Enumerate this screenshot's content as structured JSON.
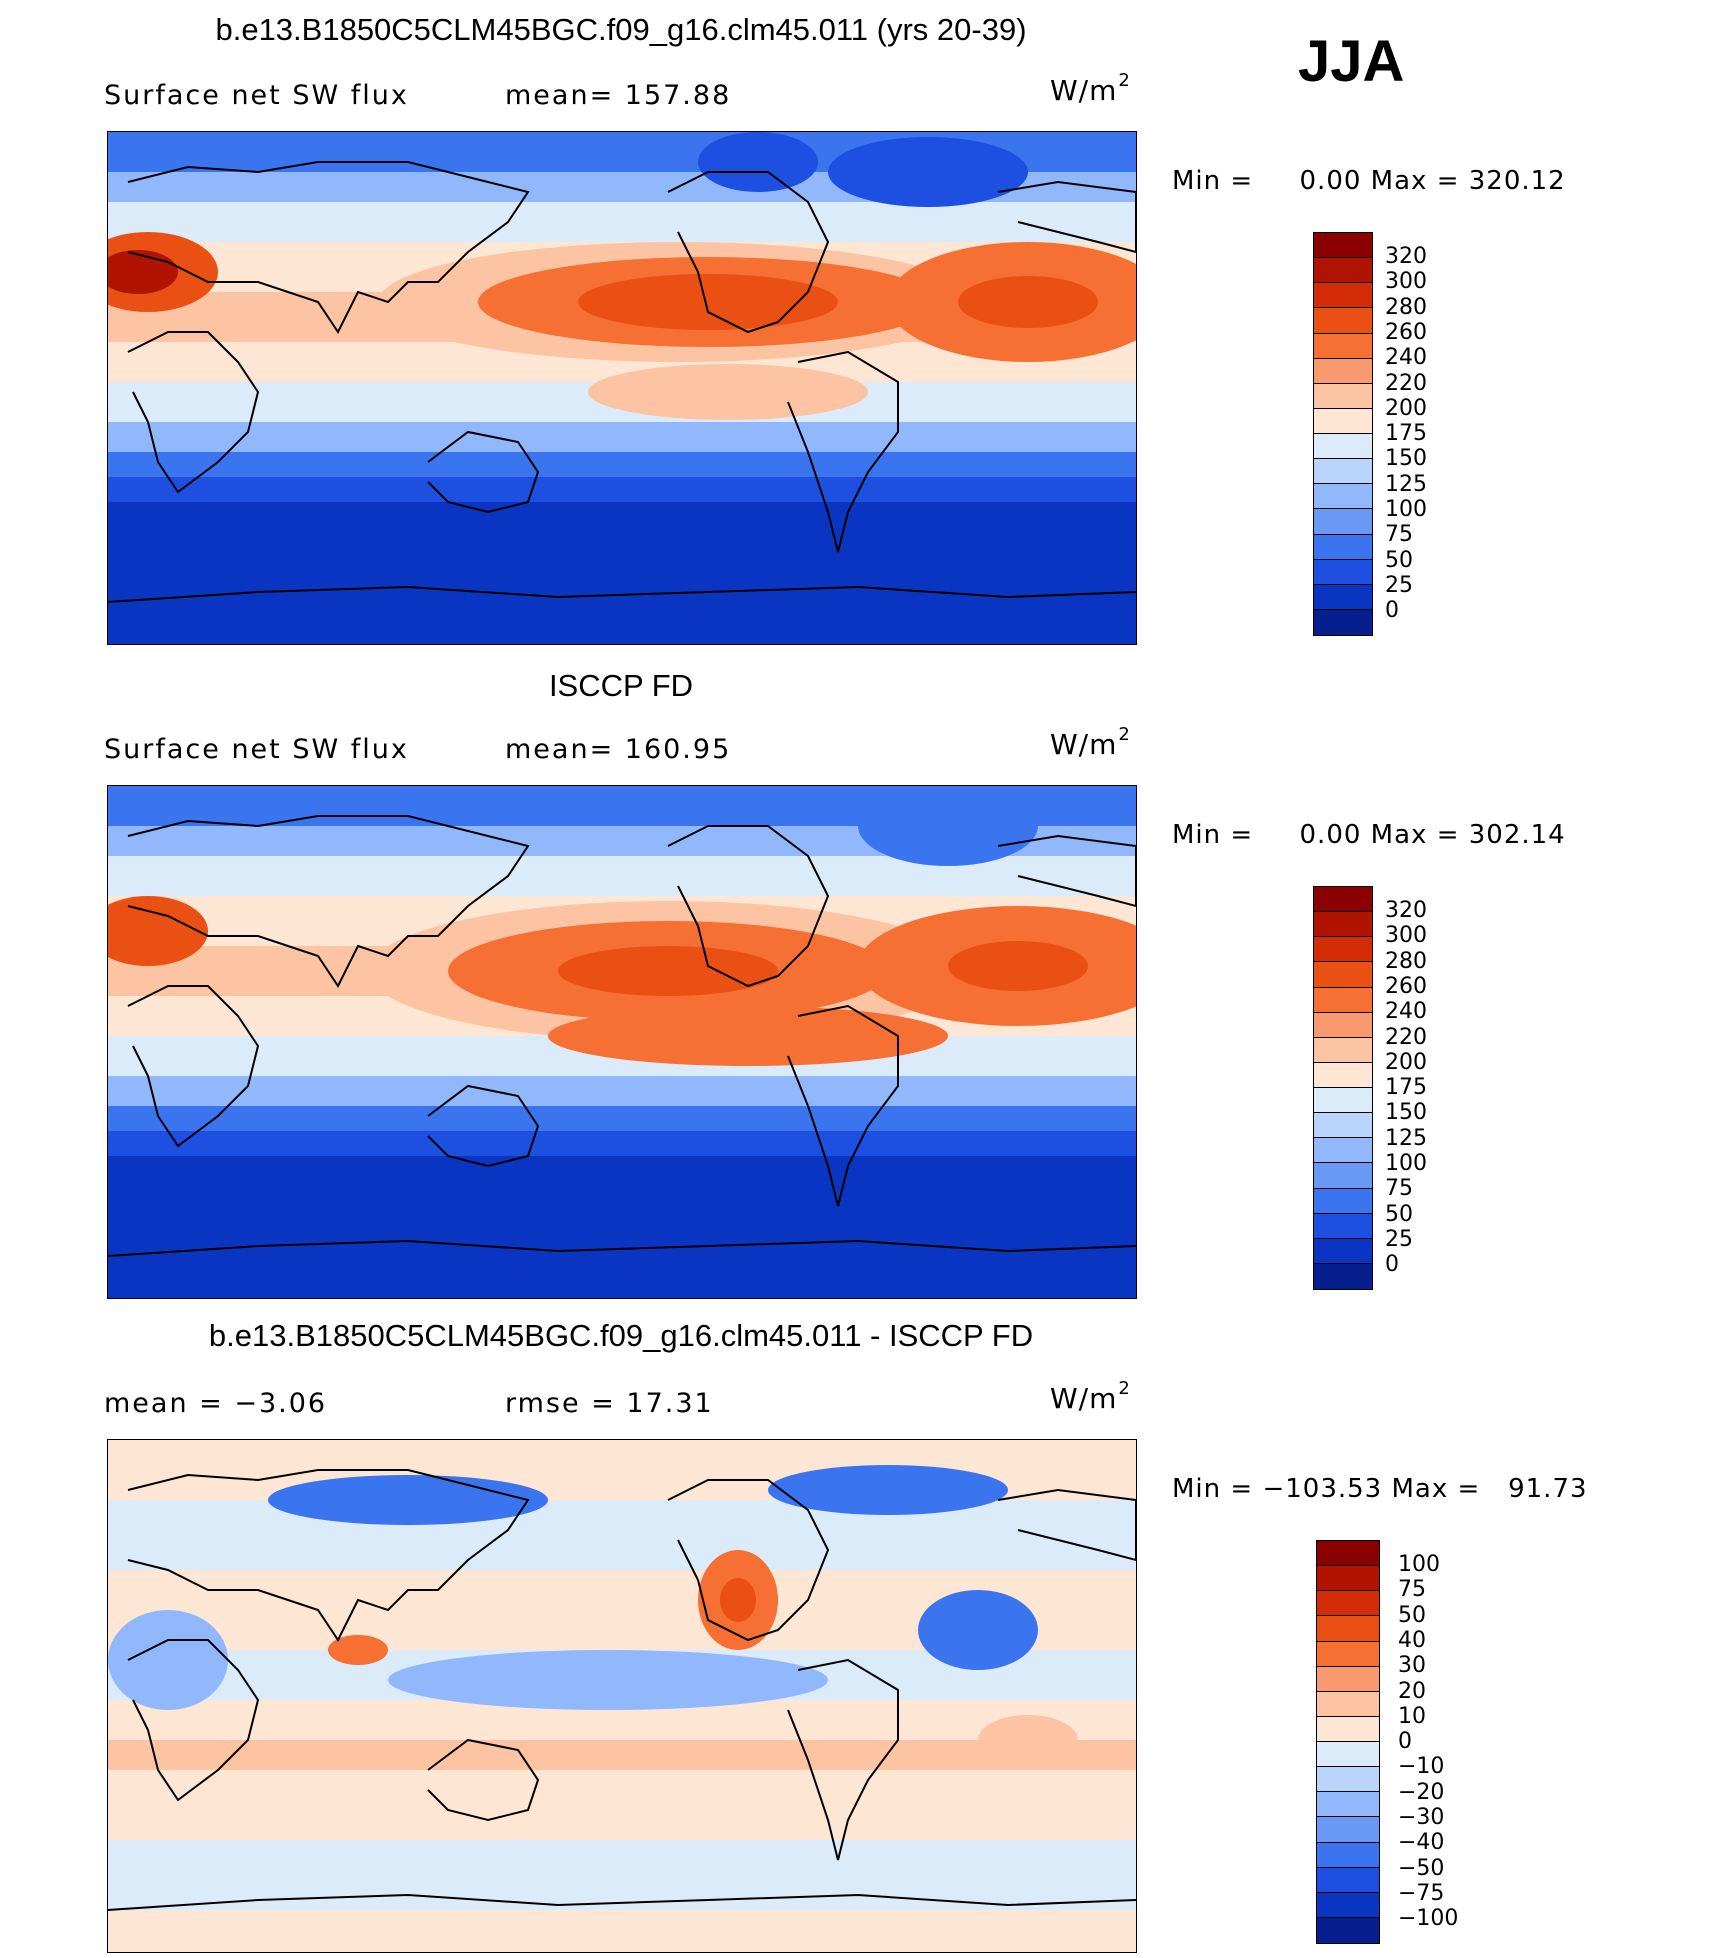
{
  "season": "JJA",
  "panels": [
    {
      "title": "b.e13.B1850C5CLM45BGC.f09_g16.clm45.011 (yrs 20-39)",
      "left_text": "Surface net SW flux",
      "right_text": "mean= 157.88",
      "units": "W/m",
      "units_sup": "2",
      "min_label": "Min =",
      "min_value": "0.00",
      "max_label": "Max =",
      "max_value": "320.12",
      "colorbar_labels": [
        "320",
        "300",
        "280",
        "260",
        "240",
        "220",
        "200",
        "175",
        "150",
        "125",
        "100",
        "75",
        "50",
        "25",
        "0"
      ],
      "colorbar_colors": [
        "#8b0000",
        "#b01400",
        "#d42c06",
        "#ea4f14",
        "#f57032",
        "#f99a6e",
        "#fcc4a2",
        "#fde6d4",
        "#dcebfa",
        "#bad5fc",
        "#91b7fc",
        "#6a98f5",
        "#3a74ee",
        "#1d4fe0",
        "#0a34c2",
        "#061e8e"
      ]
    },
    {
      "title": "ISCCP FD",
      "left_text": "Surface net SW flux",
      "right_text": "mean= 160.95",
      "units": "W/m",
      "units_sup": "2",
      "min_label": "Min =",
      "min_value": "0.00",
      "max_label": "Max =",
      "max_value": "302.14",
      "colorbar_labels": [
        "320",
        "300",
        "280",
        "260",
        "240",
        "220",
        "200",
        "175",
        "150",
        "125",
        "100",
        "75",
        "50",
        "25",
        "0"
      ],
      "colorbar_colors": [
        "#8b0000",
        "#b01400",
        "#d42c06",
        "#ea4f14",
        "#f57032",
        "#f99a6e",
        "#fcc4a2",
        "#fde6d4",
        "#dcebfa",
        "#bad5fc",
        "#91b7fc",
        "#6a98f5",
        "#3a74ee",
        "#1d4fe0",
        "#0a34c2",
        "#061e8e"
      ]
    },
    {
      "title": "b.e13.B1850C5CLM45BGC.f09_g16.clm45.011 - ISCCP FD",
      "left_text": "mean =   −3.06",
      "right_text": "rmse =   17.31",
      "units": "W/m",
      "units_sup": "2",
      "min_label": "Min =",
      "min_value": "−103.53",
      "max_label": "Max =",
      "max_value": "91.73",
      "colorbar_labels": [
        "100",
        "75",
        "50",
        "40",
        "30",
        "20",
        "10",
        "0",
        "−10",
        "−20",
        "−30",
        "−40",
        "−50",
        "−75",
        "−100"
      ],
      "colorbar_colors": [
        "#8b0000",
        "#b01400",
        "#d42c06",
        "#ea4f14",
        "#f57032",
        "#f99a6e",
        "#fcc4a2",
        "#fde6d4",
        "#dcebfa",
        "#bad5fc",
        "#91b7fc",
        "#6a98f5",
        "#3a74ee",
        "#1d4fe0",
        "#0a34c2",
        "#061e8e"
      ]
    }
  ],
  "map_colors": {
    "polar_blue": "#0a34c2",
    "deep_blue": "#1d4fe0",
    "mid_blue": "#3a74ee",
    "light_blue": "#91b7fc",
    "pale_blue": "#dcebfa",
    "pale_orange": "#fde6d4",
    "peach": "#fcc4a2",
    "orange": "#f57032",
    "red_orange": "#ea4f14",
    "dark_red": "#b01400",
    "coast": "#000000"
  }
}
